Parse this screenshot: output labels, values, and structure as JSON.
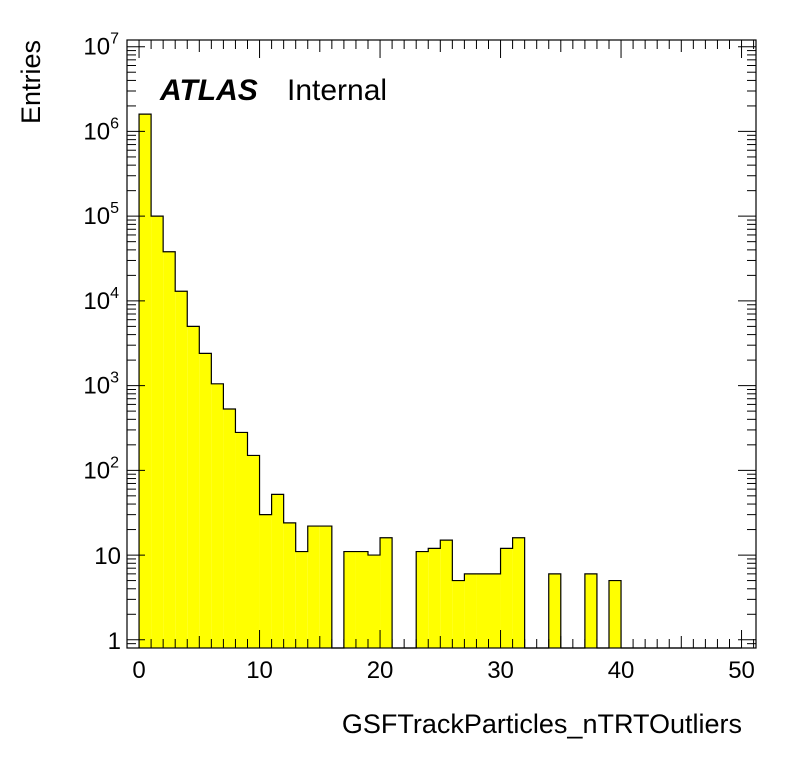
{
  "chart_data": {
    "type": "bar",
    "histogram": true,
    "label_main": "ATLAS",
    "label_sub": "Internal",
    "xlabel": "GSFTrackParticles_nTRTOutliers",
    "ylabel": "Entries",
    "xlim": [
      0,
      50
    ],
    "ylim": [
      0.8,
      12000000
    ],
    "yscale": "log",
    "fill_color": "#ffff00",
    "line_color": "#000000",
    "bin_width": 1,
    "x_ticks": [
      "0",
      "10",
      "20",
      "30",
      "40",
      "50"
    ],
    "y_ticks": [
      {
        "value": 1,
        "base": "1",
        "exp": ""
      },
      {
        "value": 10,
        "base": "10",
        "exp": ""
      },
      {
        "value": 100,
        "base": "10",
        "exp": "2"
      },
      {
        "value": 1000,
        "base": "10",
        "exp": "3"
      },
      {
        "value": 10000,
        "base": "10",
        "exp": "4"
      },
      {
        "value": 100000,
        "base": "10",
        "exp": "5"
      },
      {
        "value": 1000000,
        "base": "10",
        "exp": "6"
      },
      {
        "value": 10000000,
        "base": "10",
        "exp": "7"
      }
    ],
    "bins_low_edge": [
      0,
      1,
      2,
      3,
      4,
      5,
      6,
      7,
      8,
      9,
      10,
      11,
      12,
      13,
      14,
      15,
      16,
      17,
      18,
      19,
      20,
      21,
      22,
      23,
      24,
      25,
      26,
      27,
      28,
      29,
      30,
      31,
      32,
      33,
      34,
      35,
      36,
      37,
      38,
      39,
      40,
      41,
      42,
      43,
      44,
      45,
      46,
      47,
      48,
      49
    ],
    "values": [
      1600000,
      100000,
      38000,
      13000,
      5000,
      2400,
      1050,
      530,
      280,
      150,
      30,
      52,
      24,
      11,
      22,
      22,
      0,
      11,
      11,
      10,
      16,
      0,
      0,
      11,
      12,
      15,
      5,
      6,
      6,
      6,
      12,
      16,
      0,
      0,
      6,
      0,
      0,
      6,
      0,
      5,
      0,
      0,
      0,
      0,
      0,
      0,
      0,
      0,
      0,
      0
    ]
  }
}
